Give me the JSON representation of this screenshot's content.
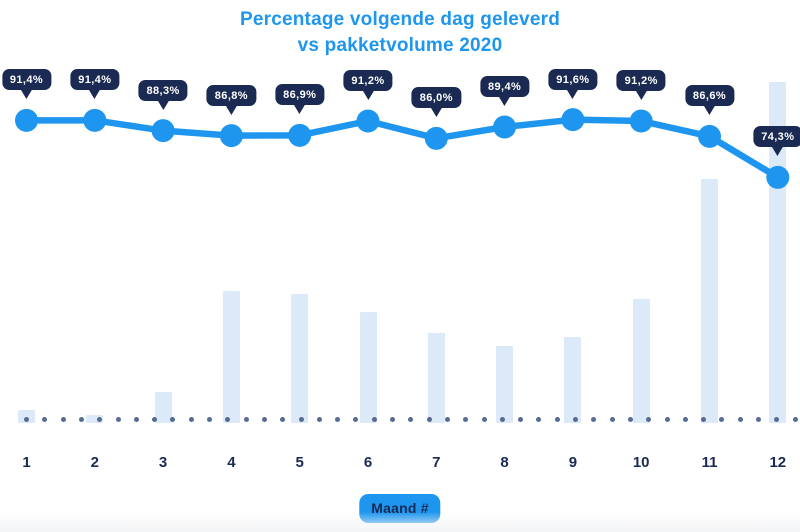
{
  "title": {
    "line1": "Percentage volgende dag geleverd",
    "line2": "vs pakketvolume 2020"
  },
  "xaxis": {
    "title": "Maand #",
    "tick_labels": [
      "1",
      "2",
      "3",
      "4",
      "5",
      "6",
      "7",
      "8",
      "9",
      "10",
      "11",
      "12"
    ]
  },
  "colors": {
    "accent_blue": "#1e96f0",
    "navy": "#1b2a52",
    "bar_fill": "#dbe9f9",
    "baseline_dot": "#566b93",
    "bubble_text": "#ffffff",
    "background": "#ffffff"
  },
  "chart_data": {
    "type": "line",
    "combo_types": [
      "line",
      "bar"
    ],
    "title": "Percentage volgende dag geleverd vs pakketvolume 2020",
    "categories": [
      "1",
      "2",
      "3",
      "4",
      "5",
      "6",
      "7",
      "8",
      "9",
      "10",
      "11",
      "12"
    ],
    "series": [
      {
        "name": "Percentage volgende dag geleverd",
        "type": "line",
        "unit": "%",
        "values": [
          91.4,
          91.4,
          88.3,
          86.8,
          86.9,
          91.2,
          86.0,
          89.4,
          91.6,
          91.2,
          86.6,
          74.3
        ],
        "point_labels": [
          "91,4%",
          "91,4%",
          "88,3%",
          "86,8%",
          "86,9%",
          "91,2%",
          "86,0%",
          "89,4%",
          "91,6%",
          "91,2%",
          "86,6%",
          "74,3%"
        ]
      },
      {
        "name": "Pakketvolume 2020",
        "type": "bar",
        "unit": "relative bar height, no value axis shown",
        "values": [
          13,
          8,
          31,
          132,
          129,
          111,
          90,
          77,
          86,
          124,
          244,
          341
        ]
      }
    ],
    "xlabel": "Maand #",
    "y_axis_visible": false,
    "legend_position": "none",
    "grid": "dotted horizontal baseline only"
  }
}
